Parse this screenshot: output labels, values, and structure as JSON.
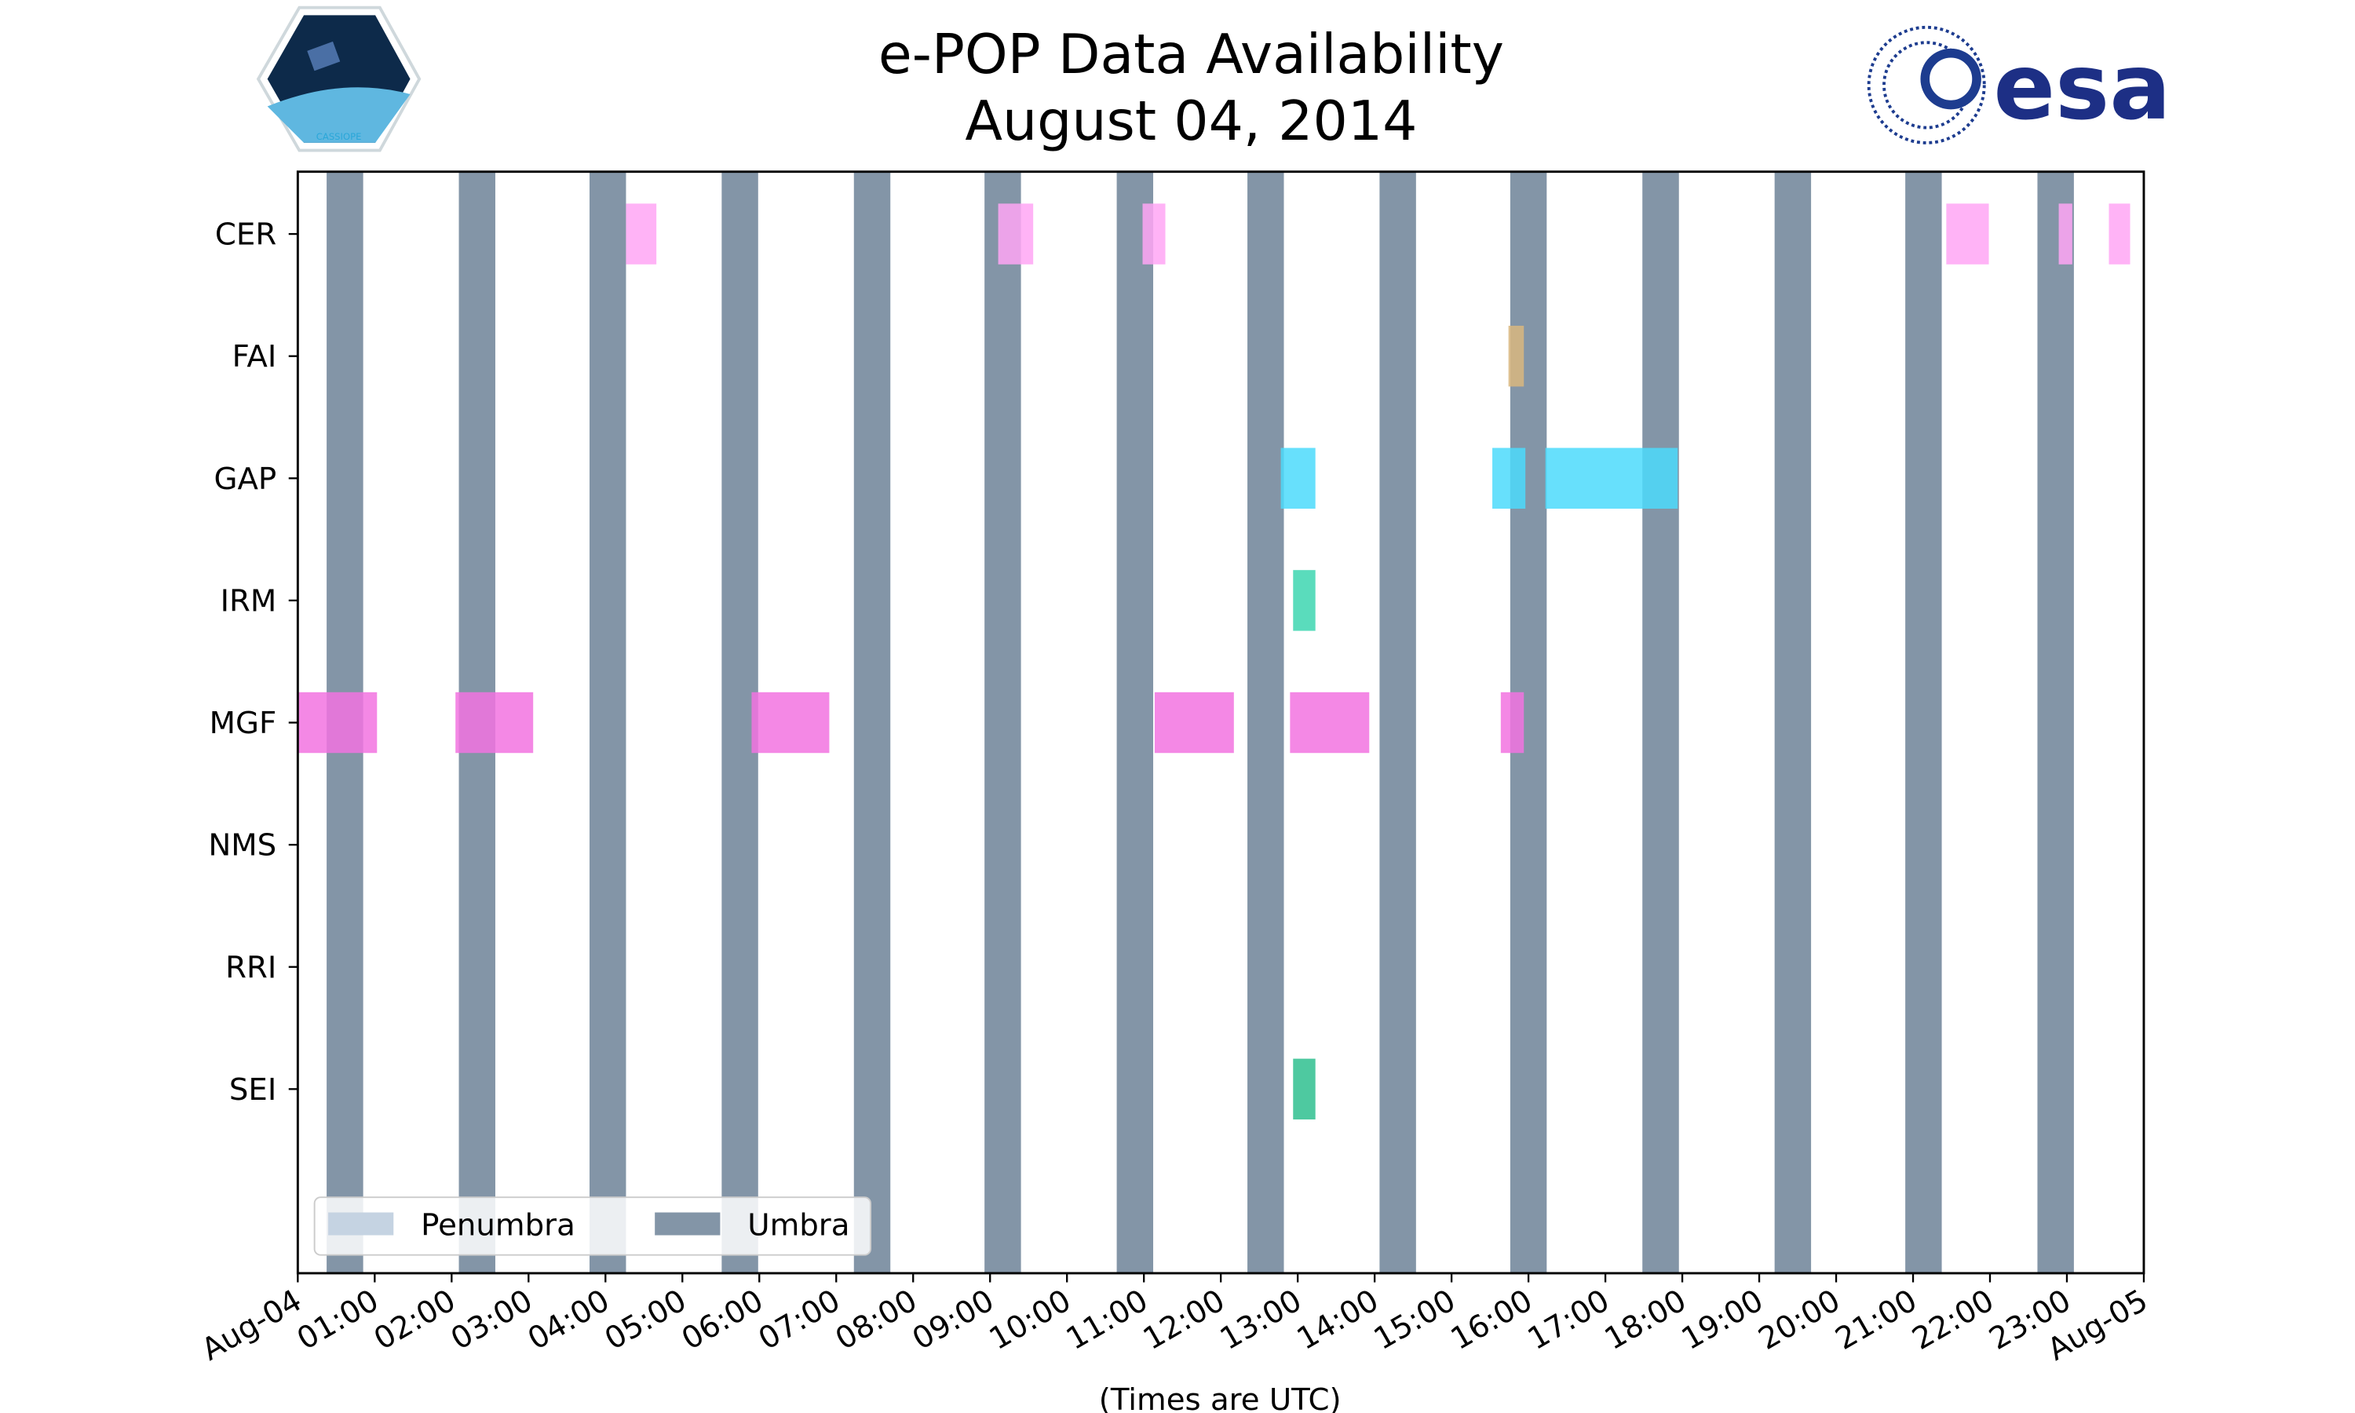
{
  "chart_data": {
    "type": "timeline",
    "title": "e-POP Data Availability",
    "subtitle": "August 04, 2014",
    "xlabel": "(Times are UTC)",
    "xlim_hours": [
      0,
      24
    ],
    "x_tick_labels": [
      "Aug-04",
      "01:00",
      "02:00",
      "03:00",
      "04:00",
      "05:00",
      "06:00",
      "07:00",
      "08:00",
      "09:00",
      "10:00",
      "11:00",
      "12:00",
      "13:00",
      "14:00",
      "15:00",
      "16:00",
      "17:00",
      "18:00",
      "19:00",
      "20:00",
      "21:00",
      "22:00",
      "23:00",
      "Aug-05"
    ],
    "y_categories": [
      "CER",
      "FAI",
      "GAP",
      "IRM",
      "MGF",
      "NMS",
      "RRI",
      "SEI"
    ],
    "legend": {
      "placement": "lower-left",
      "entries": [
        {
          "label": "Penumbra",
          "color": "#c5d3e2"
        },
        {
          "label": "Umbra",
          "color": "#8395a7"
        }
      ]
    },
    "umbra_hours": [
      [
        0.375,
        0.85
      ],
      [
        2.094,
        2.568
      ],
      [
        3.793,
        4.267
      ],
      [
        5.511,
        5.985
      ],
      [
        7.23,
        7.704
      ],
      [
        8.928,
        9.402
      ],
      [
        10.647,
        11.121
      ],
      [
        12.346,
        12.82
      ],
      [
        14.064,
        14.538
      ],
      [
        15.763,
        16.237
      ],
      [
        17.481,
        17.956
      ],
      [
        19.2,
        19.674
      ],
      [
        20.899,
        21.373
      ],
      [
        22.617,
        23.091
      ]
    ],
    "series": [
      {
        "name": "CER",
        "color": "#ffa6f4",
        "intervals_hours": [
          [
            4.267,
            4.662
          ],
          [
            9.106,
            9.561
          ],
          [
            10.983,
            11.279
          ],
          [
            21.432,
            21.985
          ],
          [
            22.894,
            23.07
          ],
          [
            23.546,
            23.822
          ]
        ]
      },
      {
        "name": "FAI",
        "color": "#d9b77f",
        "intervals_hours": [
          [
            15.74,
            15.94
          ]
        ]
      },
      {
        "name": "GAP",
        "color": "#4cdafb",
        "intervals_hours": [
          [
            12.78,
            13.23
          ],
          [
            15.53,
            15.96
          ],
          [
            16.22,
            17.94
          ]
        ]
      },
      {
        "name": "IRM",
        "color": "#3dd6b0",
        "intervals_hours": [
          [
            12.94,
            13.23
          ]
        ]
      },
      {
        "name": "MGF",
        "color": "#f273e0",
        "intervals_hours": [
          [
            0,
            1.03
          ],
          [
            2.05,
            3.06
          ],
          [
            5.9,
            6.91
          ],
          [
            11.14,
            12.17
          ],
          [
            12.9,
            13.93
          ],
          [
            15.64,
            15.94
          ]
        ]
      },
      {
        "name": "NMS",
        "color": "#999999",
        "intervals_hours": []
      },
      {
        "name": "RRI",
        "color": "#999999",
        "intervals_hours": []
      },
      {
        "name": "SEI",
        "color": "#2fbf8f",
        "intervals_hours": [
          [
            12.94,
            13.23
          ]
        ]
      }
    ]
  },
  "logos": {
    "left": "CASSIOPE",
    "right": "esa"
  }
}
